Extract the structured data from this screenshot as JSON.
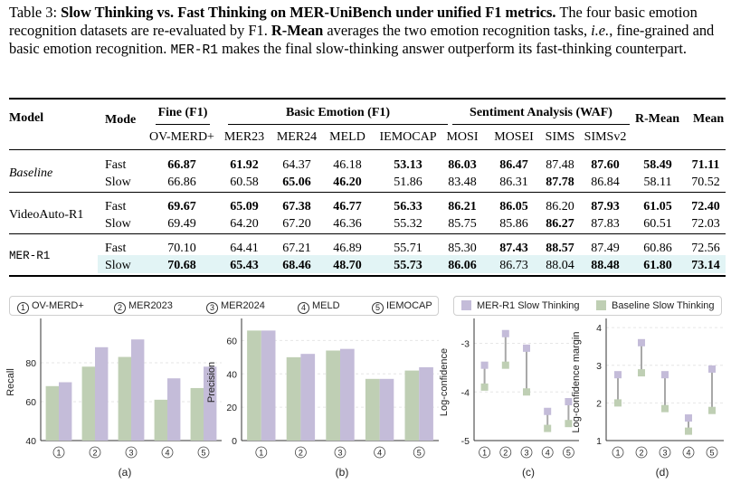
{
  "caption": {
    "prefix": "Table 3: ",
    "title": "Slow Thinking vs. Fast Thinking on MER-UniBench under unified F1 metrics.",
    "text1": " The four basic emotion recognition datasets are re-evaluated by F1. ",
    "rmean": "R-Mean",
    "text2": " averages the two emotion recognition tasks, ",
    "ie": "i.e.",
    "text3": ", fine-grained and basic emotion recognition. ",
    "mer": "MER-R1",
    "text4": " makes the final slow-thinking answer outperform its fast-thinking counterpart."
  },
  "table": {
    "h_model": "Model",
    "h_mode": "Mode",
    "h_fine": "Fine (F1)",
    "h_basic": "Basic Emotion (F1)",
    "h_sent": "Sentiment Analysis (WAF)",
    "h_rmean": "R-Mean",
    "h_mean": "Mean",
    "sub": [
      "OV-MERD+",
      "MER23",
      "MER24",
      "MELD",
      "IEMOCAP",
      "MOSI",
      "MOSEI",
      "SIMS",
      "SIMSv2"
    ],
    "groups": [
      {
        "model": "Baseline",
        "rows": [
          {
            "mode": "Fast",
            "vals": [
              "66.87",
              "61.92",
              "64.37",
              "46.18",
              "53.13",
              "86.03",
              "86.47",
              "87.48",
              "87.60",
              "58.49",
              "71.11"
            ],
            "bold": [
              1,
              1,
              0,
              0,
              1,
              1,
              1,
              0,
              1,
              1,
              1
            ]
          },
          {
            "mode": "Slow",
            "vals": [
              "66.86",
              "60.58",
              "65.06",
              "46.20",
              "51.86",
              "83.48",
              "86.31",
              "87.78",
              "86.84",
              "58.11",
              "70.52"
            ],
            "bold": [
              0,
              0,
              1,
              1,
              0,
              0,
              0,
              1,
              0,
              0,
              0
            ]
          }
        ]
      },
      {
        "model": "VideoAuto-R1",
        "rows": [
          {
            "mode": "Fast",
            "vals": [
              "69.67",
              "65.09",
              "67.38",
              "46.77",
              "56.33",
              "86.21",
              "86.05",
              "86.20",
              "87.93",
              "61.05",
              "72.40"
            ],
            "bold": [
              1,
              1,
              1,
              1,
              1,
              1,
              1,
              0,
              1,
              1,
              1
            ]
          },
          {
            "mode": "Slow",
            "vals": [
              "69.49",
              "64.20",
              "67.20",
              "46.36",
              "55.32",
              "85.75",
              "85.86",
              "86.27",
              "87.83",
              "60.51",
              "72.03"
            ],
            "bold": [
              0,
              0,
              0,
              0,
              0,
              0,
              0,
              1,
              0,
              0,
              0
            ]
          }
        ]
      },
      {
        "model": "MER-R1",
        "rows": [
          {
            "mode": "Fast",
            "vals": [
              "70.10",
              "64.41",
              "67.21",
              "46.89",
              "55.71",
              "85.30",
              "87.43",
              "88.57",
              "87.49",
              "60.86",
              "72.56"
            ],
            "bold": [
              0,
              0,
              0,
              0,
              0,
              0,
              1,
              1,
              0,
              0,
              0
            ]
          },
          {
            "mode": "Slow",
            "vals": [
              "70.68",
              "65.43",
              "68.46",
              "48.70",
              "55.73",
              "86.06",
              "86.73",
              "88.04",
              "88.48",
              "61.80",
              "73.14"
            ],
            "bold": [
              1,
              1,
              1,
              1,
              1,
              1,
              0,
              0,
              1,
              1,
              1
            ]
          }
        ]
      }
    ]
  },
  "legend1": [
    {
      "num": "1",
      "label": "OV-MERD+"
    },
    {
      "num": "2",
      "label": "MER2023"
    },
    {
      "num": "3",
      "label": "MER2024"
    },
    {
      "num": "4",
      "label": "MELD"
    },
    {
      "num": "5",
      "label": "IEMOCAP"
    }
  ],
  "legend2": [
    {
      "label": "MER-R1 Slow Thinking",
      "color": "#c4bcd9"
    },
    {
      "label": "Baseline Slow Thinking",
      "color": "#bfcfb4"
    }
  ],
  "colors": {
    "green": "#bfcfb4",
    "purple": "#c4bcd9",
    "line": "#a8a8a8"
  },
  "chart_data": [
    {
      "type": "bar",
      "panel": "(a)",
      "ylabel": "Recall",
      "ylim": [
        40,
        100
      ],
      "yticks": [
        40,
        60,
        80
      ],
      "categories": [
        "1",
        "2",
        "3",
        "4",
        "5"
      ],
      "series": [
        {
          "name": "Baseline Slow Thinking",
          "values": [
            68,
            78,
            83,
            61,
            67
          ]
        },
        {
          "name": "MER-R1 Slow Thinking",
          "values": [
            70,
            88,
            92,
            72,
            78
          ]
        }
      ]
    },
    {
      "type": "bar",
      "panel": "(b)",
      "ylabel": "Precision",
      "ylim": [
        0,
        70
      ],
      "yticks": [
        0,
        20,
        40,
        60
      ],
      "categories": [
        "1",
        "2",
        "3",
        "4",
        "5"
      ],
      "series": [
        {
          "name": "Baseline Slow Thinking",
          "values": [
            66,
            50,
            54,
            37,
            42
          ]
        },
        {
          "name": "MER-R1 Slow Thinking",
          "values": [
            66,
            52,
            55,
            37,
            44
          ]
        }
      ]
    },
    {
      "type": "scatter",
      "panel": "(c)",
      "ylabel": "Log-confidence",
      "ylim": [
        -5,
        -2.6
      ],
      "yticks": [
        -5,
        -4,
        -3
      ],
      "categories": [
        "1",
        "2",
        "3",
        "4",
        "5"
      ],
      "series": [
        {
          "name": "MER-R1 Slow Thinking",
          "values": [
            -3.45,
            -2.8,
            -3.1,
            -4.4,
            -4.2
          ]
        },
        {
          "name": "Baseline Slow Thinking",
          "values": [
            -3.9,
            -3.45,
            -4.0,
            -4.75,
            -4.65
          ]
        }
      ]
    },
    {
      "type": "scatter",
      "panel": "(d)",
      "ylabel": "Log-confidence margin",
      "ylim": [
        1,
        4.1
      ],
      "yticks": [
        1,
        2,
        3,
        4
      ],
      "categories": [
        "1",
        "2",
        "3",
        "4",
        "5"
      ],
      "series": [
        {
          "name": "MER-R1 Slow Thinking",
          "values": [
            2.75,
            3.6,
            2.75,
            1.6,
            2.9
          ]
        },
        {
          "name": "Baseline Slow Thinking",
          "values": [
            2.0,
            2.8,
            1.85,
            1.25,
            1.8
          ]
        }
      ]
    }
  ]
}
